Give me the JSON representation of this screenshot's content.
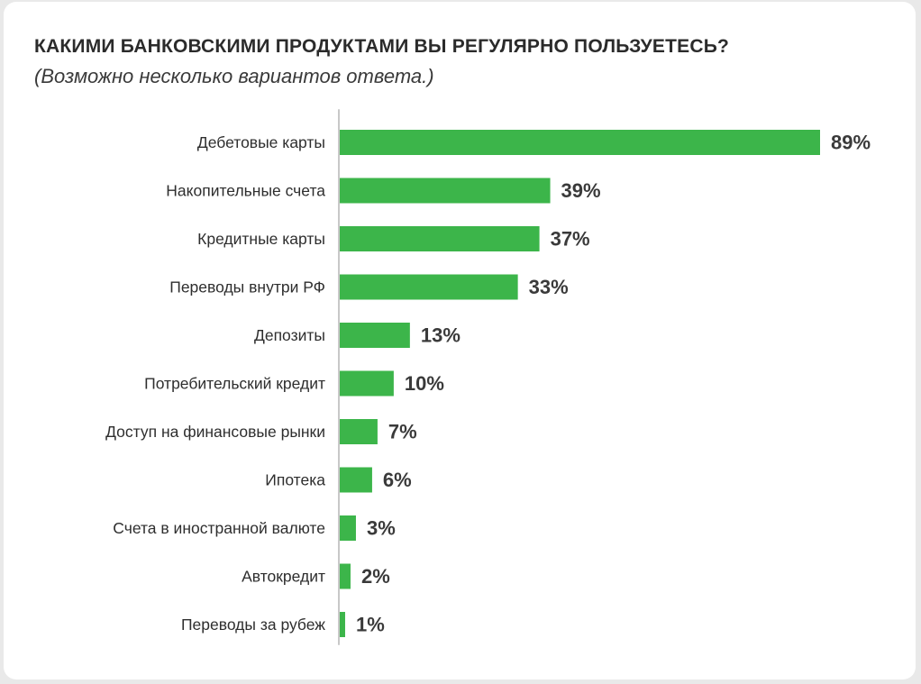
{
  "chart_data": {
    "type": "bar",
    "orientation": "horizontal",
    "title": "КАКИМИ БАНКОВСКИМИ ПРОДУКТАМИ ВЫ РЕГУЛЯРНО ПОЛЬЗУЕТЕСЬ?",
    "subtitle": "(Возможно несколько вариантов ответа.)",
    "categories": [
      "Дебетовые карты",
      "Накопительные счета",
      "Кредитные карты",
      "Переводы внутри РФ",
      "Депозиты",
      "Потребительский кредит",
      "Доступ на финансовые рынки",
      "Ипотека",
      "Счета в иностранной валюте",
      "Автокредит",
      "Переводы за рубеж"
    ],
    "values": [
      89,
      39,
      37,
      33,
      13,
      10,
      7,
      6,
      3,
      2,
      1
    ],
    "value_labels": [
      "89%",
      "39%",
      "37%",
      "33%",
      "13%",
      "10%",
      "7%",
      "6%",
      "3%",
      "2%",
      "1%"
    ],
    "bar_color": "#3cb54a",
    "axis_color": "#c8c8c8",
    "xlim": [
      0,
      89
    ],
    "grid": false,
    "legend": "none"
  }
}
